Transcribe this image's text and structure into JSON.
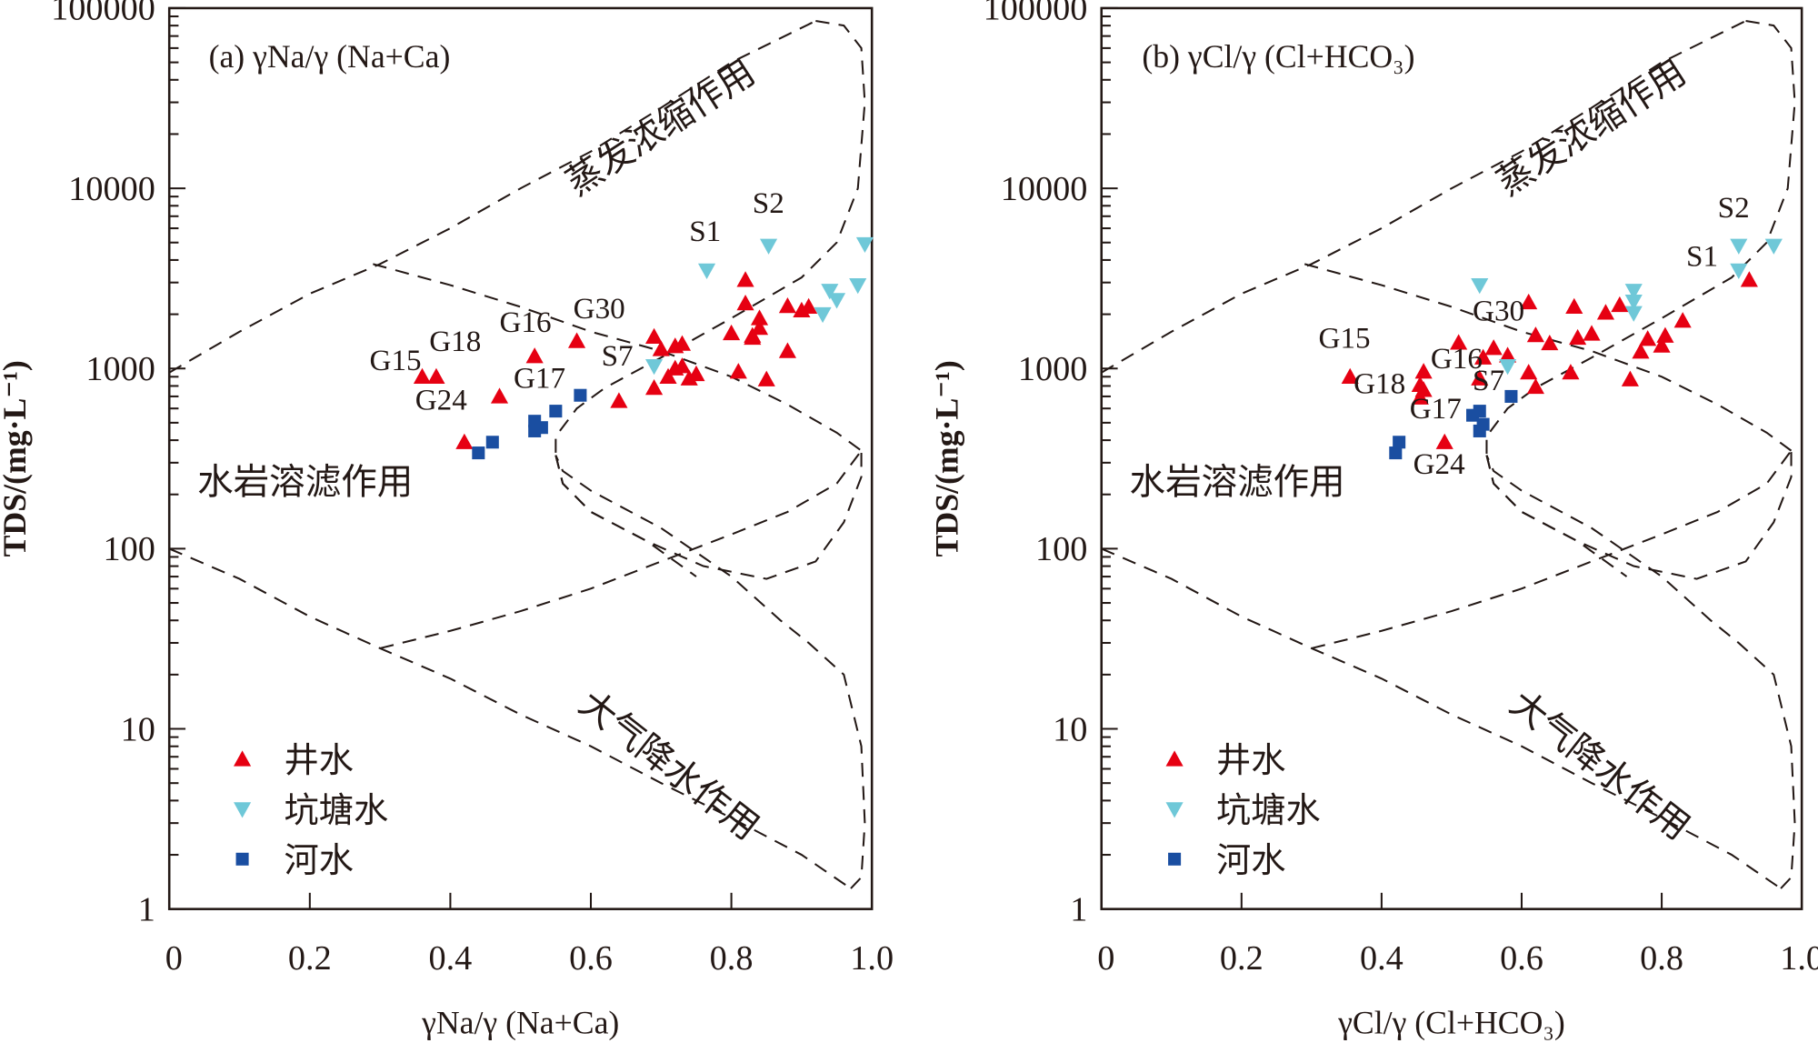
{
  "colors": {
    "well": "#e60012",
    "pond": "#6fc8d8",
    "river": "#1a4ea1",
    "ink": "#231815"
  },
  "legend": [
    {
      "key": "well",
      "label": "井水",
      "marker": "triangle-up"
    },
    {
      "key": "pond",
      "label": "坑塘水",
      "marker": "triangle-down"
    },
    {
      "key": "river",
      "label": "河水",
      "marker": "square"
    }
  ],
  "regions": {
    "evaporation": "蒸发浓缩作用",
    "rock": "水岩溶滤作用",
    "precipitation": "大气降水作用"
  },
  "chart_data": [
    {
      "type": "scatter",
      "id": "a",
      "title": "(a) γNa/γ (Na+Ca)",
      "xlabel": "γNa/γ (Na+Ca)",
      "ylabel": "TDS/(mg·L⁻¹)",
      "xlim": [
        0,
        1.0
      ],
      "ylim": [
        1,
        100000
      ],
      "yscale": "log",
      "xticks": [
        "0",
        "0.2",
        "0.4",
        "0.6",
        "0.8",
        "1.0"
      ],
      "yticks": [
        "1",
        "10",
        "100",
        "1000",
        "10000",
        "100000"
      ],
      "legend_position": "bottom-left",
      "series": [
        {
          "name": "井水",
          "key": "well",
          "points": [
            [
              0.36,
              900
            ],
            [
              0.38,
              900
            ],
            [
              0.42,
              390
            ],
            [
              0.47,
              700
            ],
            [
              0.52,
              1170
            ],
            [
              0.58,
              1420
            ],
            [
              0.64,
              660
            ],
            [
              0.69,
              1500
            ],
            [
              0.69,
              780
            ],
            [
              0.7,
              1280
            ],
            [
              0.71,
              900
            ],
            [
              0.72,
              1330
            ],
            [
              0.73,
              1370
            ],
            [
              0.73,
              1030
            ],
            [
              0.74,
              880
            ],
            [
              0.75,
              930
            ],
            [
              0.72,
              1000
            ],
            [
              0.82,
              3100
            ],
            [
              0.82,
              2300
            ],
            [
              0.8,
              1570
            ],
            [
              0.83,
              1480
            ],
            [
              0.84,
              1900
            ],
            [
              0.83,
              1520
            ],
            [
              0.81,
              960
            ],
            [
              0.85,
              870
            ],
            [
              0.88,
              1250
            ],
            [
              0.88,
              2220
            ],
            [
              0.9,
              2100
            ],
            [
              0.91,
              2200
            ],
            [
              0.84,
              1680
            ]
          ]
        },
        {
          "name": "坑塘水",
          "key": "pond",
          "points": [
            [
              0.765,
              3500
            ],
            [
              0.853,
              4800
            ],
            [
              0.69,
              1030
            ],
            [
              0.99,
              4900
            ],
            [
              0.94,
              2700
            ],
            [
              0.93,
              2000
            ],
            [
              0.95,
              2400
            ],
            [
              0.98,
              2900
            ]
          ]
        },
        {
          "name": "河水",
          "key": "river",
          "points": [
            [
              0.44,
              340
            ],
            [
              0.46,
              390
            ],
            [
              0.52,
              510
            ],
            [
              0.52,
              450
            ],
            [
              0.53,
              470
            ],
            [
              0.55,
              580
            ],
            [
              0.585,
              710
            ]
          ]
        }
      ],
      "annotations": [
        {
          "text": "G15",
          "x": 0.285,
          "y": 980
        },
        {
          "text": "G18",
          "x": 0.37,
          "y": 1250
        },
        {
          "text": "G16",
          "x": 0.47,
          "y": 1600
        },
        {
          "text": "G30",
          "x": 0.575,
          "y": 1900
        },
        {
          "text": "G17",
          "x": 0.49,
          "y": 780
        },
        {
          "text": "G24",
          "x": 0.35,
          "y": 590
        },
        {
          "text": "S7",
          "x": 0.615,
          "y": 1040
        },
        {
          "text": "S1",
          "x": 0.74,
          "y": 5100
        },
        {
          "text": "S2",
          "x": 0.83,
          "y": 7300
        }
      ]
    },
    {
      "type": "scatter",
      "id": "b",
      "title": "(b) γCl/γ (Cl+HCO₃)",
      "xlabel": "γCl/γ (Cl+HCO₃)",
      "ylabel": "TDS/(mg·L⁻¹)",
      "xlim": [
        0,
        1.0
      ],
      "ylim": [
        1,
        100000
      ],
      "yscale": "log",
      "xticks": [
        "0",
        "0.2",
        "0.4",
        "0.6",
        "0.8",
        "1.0"
      ],
      "yticks": [
        "1",
        "10",
        "100",
        "1000",
        "10000",
        "100000"
      ],
      "legend_position": "bottom-left",
      "series": [
        {
          "name": "井水",
          "key": "well",
          "points": [
            [
              0.355,
              900
            ],
            [
              0.455,
              690
            ],
            [
              0.455,
              810
            ],
            [
              0.46,
              960
            ],
            [
              0.46,
              760
            ],
            [
              0.51,
              1390
            ],
            [
              0.49,
              390
            ],
            [
              0.54,
              880
            ],
            [
              0.56,
              1300
            ],
            [
              0.58,
              1180
            ],
            [
              0.61,
              2330
            ],
            [
              0.61,
              950
            ],
            [
              0.62,
              790
            ],
            [
              0.64,
              1380
            ],
            [
              0.62,
              1530
            ],
            [
              0.67,
              950
            ],
            [
              0.675,
              2200
            ],
            [
              0.68,
              1480
            ],
            [
              0.7,
              1560
            ],
            [
              0.72,
              2040
            ],
            [
              0.74,
              2250
            ],
            [
              0.755,
              870
            ],
            [
              0.77,
              1240
            ],
            [
              0.78,
              1460
            ],
            [
              0.8,
              1340
            ],
            [
              0.805,
              1520
            ],
            [
              0.83,
              1840
            ],
            [
              0.925,
              3100
            ],
            [
              0.545,
              1150
            ]
          ]
        },
        {
          "name": "坑塘水",
          "key": "pond",
          "points": [
            [
              0.54,
              2900
            ],
            [
              0.58,
              1030
            ],
            [
              0.76,
              2700
            ],
            [
              0.76,
              2350
            ],
            [
              0.76,
              2030
            ],
            [
              0.91,
              3500
            ],
            [
              0.91,
              4800
            ],
            [
              0.96,
              4800
            ]
          ]
        },
        {
          "name": "河水",
          "key": "river",
          "points": [
            [
              0.42,
              340
            ],
            [
              0.425,
              390
            ],
            [
              0.53,
              550
            ],
            [
              0.54,
              450
            ],
            [
              0.545,
              490
            ],
            [
              0.54,
              580
            ],
            [
              0.585,
              700
            ]
          ]
        }
      ],
      "annotations": [
        {
          "text": "G15",
          "x": 0.31,
          "y": 1300
        },
        {
          "text": "G30",
          "x": 0.53,
          "y": 1850
        },
        {
          "text": "G16",
          "x": 0.47,
          "y": 1000
        },
        {
          "text": "G18",
          "x": 0.36,
          "y": 730
        },
        {
          "text": "S7",
          "x": 0.53,
          "y": 760
        },
        {
          "text": "G17",
          "x": 0.44,
          "y": 530
        },
        {
          "text": "G24",
          "x": 0.445,
          "y": 260
        },
        {
          "text": "S1",
          "x": 0.835,
          "y": 3700
        },
        {
          "text": "S2",
          "x": 0.88,
          "y": 6900
        }
      ]
    }
  ]
}
